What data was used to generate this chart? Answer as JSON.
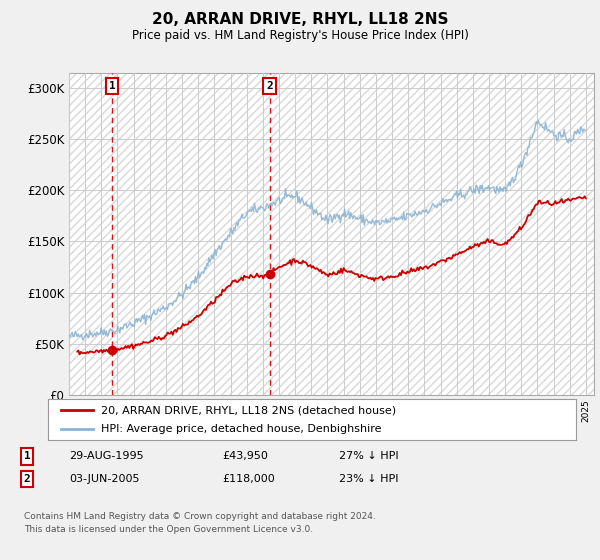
{
  "title": "20, ARRAN DRIVE, RHYL, LL18 2NS",
  "subtitle": "Price paid vs. HM Land Registry's House Price Index (HPI)",
  "xlim_start": 1993.0,
  "xlim_end": 2025.5,
  "ylim": [
    0,
    315000
  ],
  "yticks": [
    0,
    50000,
    100000,
    150000,
    200000,
    250000,
    300000
  ],
  "ytick_labels": [
    "£0",
    "£50K",
    "£100K",
    "£150K",
    "£200K",
    "£250K",
    "£300K"
  ],
  "sale1_x": 1995.66,
  "sale1_y": 43950,
  "sale2_x": 2005.42,
  "sale2_y": 118000,
  "sale1_label": "1",
  "sale2_label": "2",
  "vline1_x": 1995.66,
  "vline2_x": 2005.42,
  "legend_line1": "20, ARRAN DRIVE, RHYL, LL18 2NS (detached house)",
  "legend_line2": "HPI: Average price, detached house, Denbighshire",
  "table_row1": [
    "1",
    "29-AUG-1995",
    "£43,950",
    "27% ↓ HPI"
  ],
  "table_row2": [
    "2",
    "03-JUN-2005",
    "£118,000",
    "23% ↓ HPI"
  ],
  "footnote": "Contains HM Land Registry data © Crown copyright and database right 2024.\nThis data is licensed under the Open Government Licence v3.0.",
  "bg_color": "#f0f0f0",
  "plot_bg": "#ffffff",
  "red_line_color": "#cc0000",
  "blue_line_color": "#8ab4d4",
  "vline_color": "#cc0000",
  "grid_color": "#cccccc",
  "hatch_color": "#d8d8d8",
  "xticks": [
    1993,
    1994,
    1995,
    1996,
    1997,
    1998,
    1999,
    2000,
    2001,
    2002,
    2003,
    2004,
    2005,
    2006,
    2007,
    2008,
    2009,
    2010,
    2011,
    2012,
    2013,
    2014,
    2015,
    2016,
    2017,
    2018,
    2019,
    2020,
    2021,
    2022,
    2023,
    2024,
    2025
  ]
}
